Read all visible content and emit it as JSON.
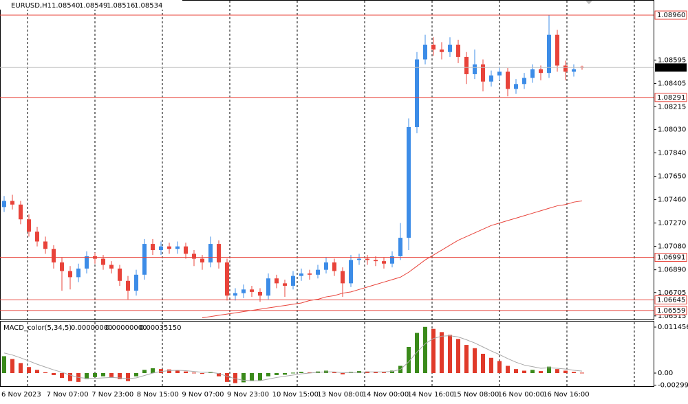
{
  "chart_data": {
    "type": "candlestick",
    "header": {
      "symbol": "EURUSD,H1",
      "values": [
        "1.08540",
        "1.08549",
        "1.08516",
        "1.08534"
      ]
    },
    "open": [
      1.074,
      1.0745,
      1.0742,
      1.073,
      1.072,
      1.0712,
      1.0706,
      1.0695,
      1.0688,
      1.0683,
      1.069,
      1.07,
      1.0698,
      1.0693,
      1.069,
      1.068,
      1.0672,
      1.0685,
      1.071,
      1.0705,
      1.0708,
      1.0706,
      1.0708,
      1.0702,
      1.0698,
      1.0695,
      1.071,
      1.0695,
      1.0668,
      1.067,
      1.0673,
      1.0671,
      1.0668,
      1.0682,
      1.0678,
      1.0676,
      1.0684,
      1.0686,
      1.0685,
      1.0689,
      1.0695,
      1.0688,
      1.0678,
      1.0697,
      1.0698,
      1.0697,
      1.0696,
      1.0694,
      1.07,
      1.0715,
      1.0805,
      1.086,
      1.0872,
      1.0868,
      1.0866,
      1.0872,
      1.0862,
      1.0848,
      1.0856,
      1.0842,
      1.0847,
      1.085,
      1.0836,
      1.084,
      1.0845,
      1.0852,
      1.0849,
      1.088,
      1.0855,
      1.085,
      1.0854
    ],
    "high": [
      1.0749,
      1.075,
      1.0745,
      1.0734,
      1.0724,
      1.0716,
      1.0709,
      1.0699,
      1.0692,
      1.0694,
      1.0704,
      1.0703,
      1.0701,
      1.0696,
      1.0693,
      1.0684,
      1.0689,
      1.0714,
      1.0714,
      1.0712,
      1.0711,
      1.0712,
      1.0711,
      1.0705,
      1.0701,
      1.0716,
      1.0713,
      1.0698,
      1.0674,
      1.0677,
      1.0676,
      1.0674,
      1.0686,
      1.0685,
      1.0681,
      1.0688,
      1.069,
      1.0689,
      1.0693,
      1.0699,
      1.0698,
      1.0691,
      1.0701,
      1.0702,
      1.0701,
      1.07,
      1.0699,
      1.0704,
      1.0727,
      1.0812,
      1.0866,
      1.088,
      1.0878,
      1.0874,
      1.0878,
      1.0876,
      1.0866,
      1.0868,
      1.086,
      1.0851,
      1.0854,
      1.0853,
      1.0844,
      1.0849,
      1.0856,
      1.0855,
      1.0896,
      1.0884,
      1.0859,
      1.0856,
      1.08549
    ],
    "low": [
      1.0736,
      1.0738,
      1.0726,
      1.0716,
      1.0708,
      1.0702,
      1.069,
      1.0672,
      1.0673,
      1.0679,
      1.0686,
      1.0694,
      1.0689,
      1.0686,
      1.0676,
      1.0665,
      1.0668,
      1.0681,
      1.0701,
      1.0701,
      1.0702,
      1.0702,
      1.0698,
      1.0692,
      1.0689,
      1.0691,
      1.069,
      1.0664,
      1.0664,
      1.0666,
      1.0667,
      1.0663,
      1.0665,
      1.0674,
      1.0667,
      1.0673,
      1.068,
      1.0681,
      1.0682,
      1.0686,
      1.0684,
      1.0667,
      1.0675,
      1.0693,
      1.0693,
      1.0692,
      1.069,
      1.0691,
      1.0697,
      1.0705,
      1.08,
      1.0856,
      1.0863,
      1.086,
      1.0862,
      1.0857,
      1.084,
      1.0844,
      1.0834,
      1.0838,
      1.0843,
      1.083,
      1.0832,
      1.0836,
      1.0841,
      1.0843,
      1.0845,
      1.085,
      1.0843,
      1.0846,
      1.08516
    ],
    "close": [
      1.0745,
      1.0742,
      1.073,
      1.072,
      1.0712,
      1.0706,
      1.0695,
      1.0688,
      1.0683,
      1.069,
      1.07,
      1.0698,
      1.0693,
      1.069,
      1.068,
      1.0672,
      1.0685,
      1.071,
      1.0705,
      1.0708,
      1.0706,
      1.0708,
      1.0702,
      1.0698,
      1.0695,
      1.071,
      1.0695,
      1.0668,
      1.067,
      1.0673,
      1.0671,
      1.0668,
      1.0682,
      1.0678,
      1.0676,
      1.0684,
      1.0686,
      1.0685,
      1.0689,
      1.0695,
      1.0688,
      1.0678,
      1.0697,
      1.0698,
      1.0697,
      1.0696,
      1.0694,
      1.07,
      1.0715,
      1.0805,
      1.086,
      1.0872,
      1.0868,
      1.0866,
      1.0872,
      1.0862,
      1.0848,
      1.0856,
      1.0842,
      1.0847,
      1.085,
      1.0836,
      1.084,
      1.0845,
      1.0852,
      1.0849,
      1.088,
      1.0855,
      1.085,
      1.0852,
      1.08534
    ],
    "up_color": "#3c8ce7",
    "down_color": "#e8433a",
    "ma": {
      "color": "#e8433a",
      "values": [
        null,
        null,
        null,
        null,
        null,
        null,
        null,
        null,
        null,
        null,
        null,
        null,
        null,
        null,
        null,
        null,
        null,
        null,
        null,
        null,
        null,
        null,
        null,
        null,
        1.065,
        1.0651,
        1.0652,
        1.0653,
        1.0654,
        1.0655,
        1.0656,
        1.0657,
        1.0658,
        1.0659,
        1.066,
        1.0661,
        1.0662,
        1.0664,
        1.0665,
        1.0667,
        1.0668,
        1.067,
        1.0671,
        1.0673,
        1.0675,
        1.0677,
        1.0679,
        1.0681,
        1.0683,
        1.0687,
        1.0692,
        1.0697,
        1.0701,
        1.0705,
        1.0709,
        1.0713,
        1.0716,
        1.0719,
        1.0722,
        1.0725,
        1.0727,
        1.0729,
        1.0731,
        1.0733,
        1.0735,
        1.0737,
        1.0739,
        1.0741,
        1.0742,
        1.0744,
        1.0745
      ]
    },
    "ylim": [
      1.06486,
      1.09083
    ],
    "yticks": [
      {
        "value": 1.08595,
        "label": "1.08595"
      },
      {
        "value": 1.08405,
        "label": "1.08405"
      },
      {
        "value": 1.08215,
        "label": "1.08215"
      },
      {
        "value": 1.0803,
        "label": "1.08030"
      },
      {
        "value": 1.0784,
        "label": "1.07840"
      },
      {
        "value": 1.0765,
        "label": "1.07650"
      },
      {
        "value": 1.0746,
        "label": "1.07460"
      },
      {
        "value": 1.0727,
        "label": "1.07270"
      },
      {
        "value": 1.0708,
        "label": "1.07080"
      },
      {
        "value": 1.0689,
        "label": "1.06890"
      },
      {
        "value": 1.06705,
        "label": "1.06705"
      },
      {
        "value": 1.06515,
        "label": "1.06515"
      }
    ],
    "levels": [
      {
        "value": 1.0896,
        "label": "1.08960"
      },
      {
        "value": 1.08291,
        "label": "1.08291"
      },
      {
        "value": 1.06991,
        "label": "1.06991"
      },
      {
        "value": 1.06645,
        "label": "1.06645"
      },
      {
        "value": 1.06559,
        "label": "1.06559"
      }
    ],
    "level_color": "#e8433a",
    "current": {
      "value": 1.08534,
      "label": "1.08534"
    },
    "x_labels": [
      "6 Nov 2023",
      "7 Nov 07:00",
      "7 Nov 23:00",
      "8 Nov 15:00",
      "9 Nov 07:00",
      "9 Nov 23:00",
      "10 Nov 15:00",
      "13 Nov 08:00",
      "14 Nov 00:00",
      "14 Nov 16:00",
      "15 Nov 08:00",
      "16 Nov 00:00",
      "16 Nov 16:00"
    ],
    "macd": {
      "title": "MACD_color(5,34,5)",
      "header_values": [
        "0.00000000",
        "0.00000000",
        "0.00035150"
      ],
      "rising_color": "#3a8a1a",
      "falling_color": "#e03a2a",
      "signal_color": "#a8a8a8",
      "values": [
        0.0042,
        0.0035,
        0.0025,
        0.0015,
        0.0008,
        0.0002,
        -0.0005,
        -0.0012,
        -0.002,
        -0.0022,
        -0.0015,
        -0.001,
        -0.0008,
        -0.001,
        -0.0015,
        -0.002,
        -0.0008,
        0.0008,
        0.0012,
        0.001,
        0.0009,
        0.0007,
        0.0004,
        0.0001,
        -0.0002,
        0.0003,
        -0.0008,
        -0.0022,
        -0.0025,
        -0.0023,
        -0.002,
        -0.0018,
        -0.0008,
        -0.0005,
        -0.0004,
        0.0001,
        0.0003,
        0.0002,
        0.0004,
        0.0006,
        0.0002,
        -0.0003,
        0.0003,
        0.0005,
        0.0004,
        0.0003,
        0.0002,
        0.0006,
        0.0018,
        0.0065,
        0.01,
        0.0115,
        0.011,
        0.0102,
        0.0095,
        0.0085,
        0.007,
        0.0062,
        0.0048,
        0.0038,
        0.003,
        0.0018,
        0.001,
        0.0006,
        0.0008,
        0.0005,
        0.0016,
        0.001,
        0.0006,
        0.0003,
        0.0001
      ],
      "signal": [
        0.005,
        0.0045,
        0.0038,
        0.003,
        0.0022,
        0.0015,
        0.0008,
        0.0002,
        -0.0005,
        -0.0011,
        -0.0013,
        -0.0013,
        -0.0012,
        -0.0011,
        -0.0012,
        -0.0014,
        -0.0012,
        -0.0006,
        0.0,
        0.0004,
        0.0006,
        0.0007,
        0.0006,
        0.0004,
        0.0002,
        0.0002,
        -0.0001,
        -0.0008,
        -0.0014,
        -0.0018,
        -0.0019,
        -0.0019,
        -0.0015,
        -0.0011,
        -0.0008,
        -0.0005,
        -0.0002,
        0.0,
        0.0002,
        0.0003,
        0.0003,
        0.0001,
        0.0001,
        0.0002,
        0.0003,
        0.0003,
        0.0003,
        0.0004,
        0.0009,
        0.0028,
        0.0052,
        0.0073,
        0.0086,
        0.0092,
        0.0093,
        0.009,
        0.0083,
        0.0075,
        0.0065,
        0.0055,
        0.0046,
        0.0036,
        0.0027,
        0.002,
        0.0016,
        0.0012,
        0.0013,
        0.0012,
        0.001,
        0.0007,
        0.0005
      ],
      "ylim": [
        -0.00325,
        0.013
      ],
      "yticks": [
        {
          "value": 0.0114563,
          "label": "0.0114563"
        },
        {
          "value": 0,
          "label": "0.00"
        },
        {
          "value": -0.002997,
          "label": "-0.0029970"
        }
      ]
    }
  }
}
